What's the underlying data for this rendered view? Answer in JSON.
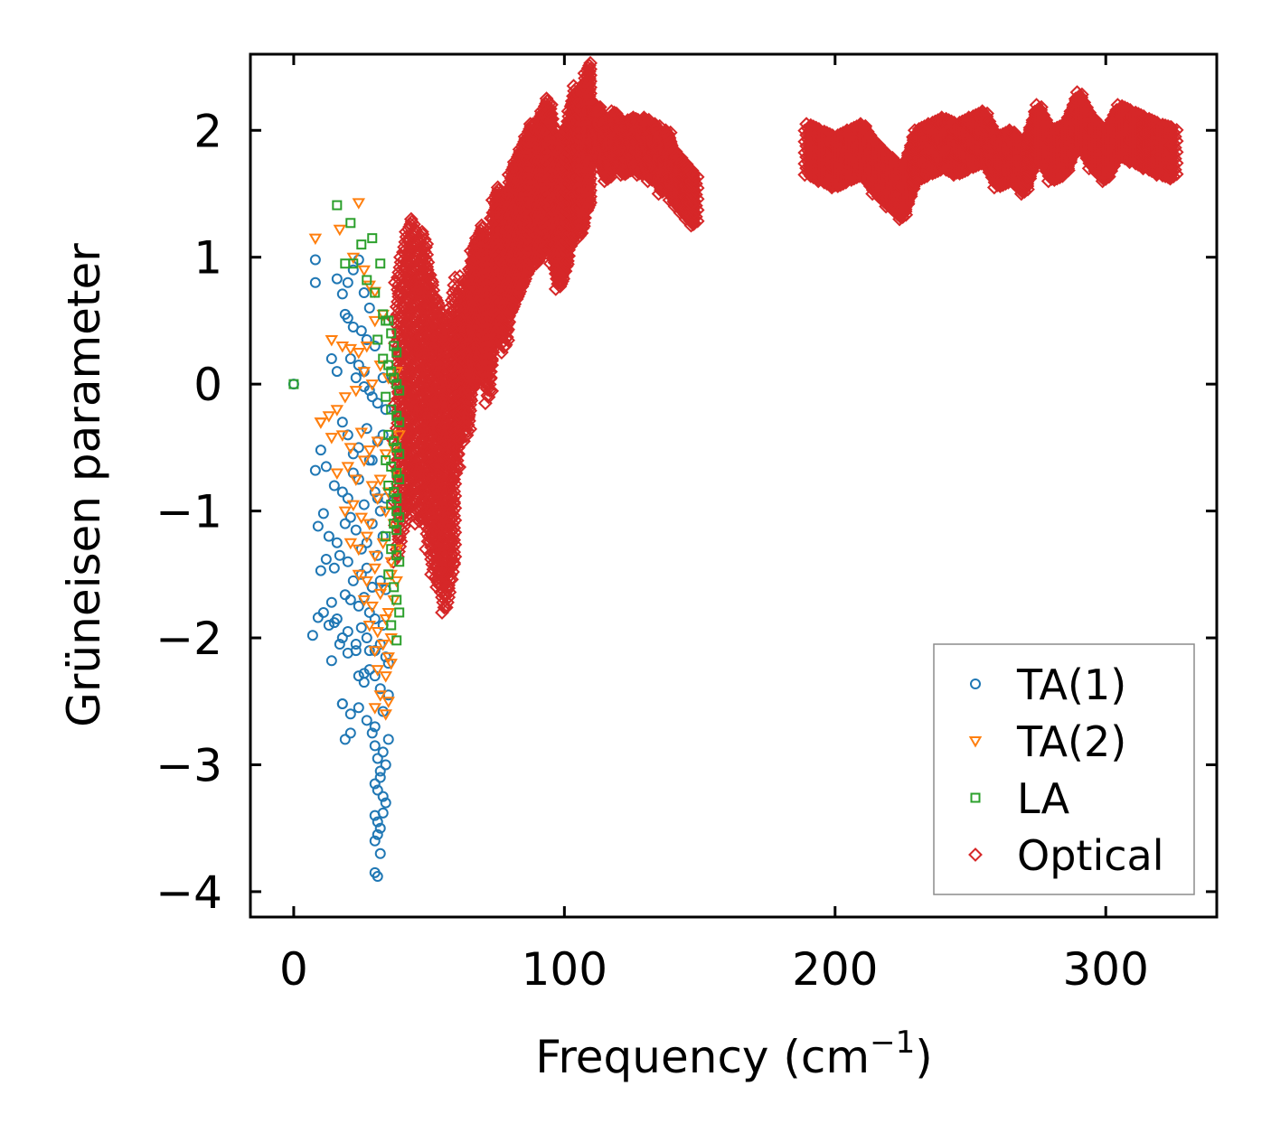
{
  "chart_data": {
    "type": "scatter",
    "title": "",
    "xlabel": "Frequency (cm",
    "xlabel_sup": "−1",
    "xlabel_end": ")",
    "ylabel": "Grüneisen parameter",
    "xlim": [
      -16,
      341
    ],
    "ylim": [
      -4.2,
      2.6
    ],
    "xticks": [
      0,
      100,
      200,
      300
    ],
    "xtick_labels": [
      "0",
      "100",
      "200",
      "300"
    ],
    "yticks": [
      -4,
      -3,
      -2,
      -1,
      0,
      1,
      2
    ],
    "ytick_labels": [
      "−4",
      "−3",
      "−2",
      "−1",
      "0",
      "1",
      "2"
    ],
    "grid": false,
    "legend_position": "bottom-right",
    "series": [
      {
        "name": "TA(1)",
        "marker": "circle",
        "color": "#1f77b4",
        "x": [
          0,
          8,
          8,
          16,
          18,
          19,
          20,
          22,
          24,
          26,
          28,
          20,
          22,
          25,
          27,
          30,
          21,
          24,
          26,
          23,
          26,
          28,
          29,
          31,
          33,
          34,
          14,
          16,
          18,
          20,
          22,
          24,
          27,
          29,
          31,
          10,
          12,
          15,
          18,
          20,
          22,
          24,
          26,
          28,
          30,
          32,
          34,
          8,
          9,
          11,
          13,
          16,
          19,
          21,
          23,
          25,
          27,
          29,
          31,
          33,
          10,
          12,
          15,
          17,
          20,
          22,
          25,
          27,
          29,
          32,
          34,
          11,
          14,
          16,
          19,
          21,
          24,
          26,
          28,
          30,
          33,
          7,
          9,
          13,
          15,
          18,
          20,
          23,
          25,
          27,
          30,
          32,
          34,
          14,
          17,
          20,
          23,
          26,
          28,
          30,
          32,
          35,
          18,
          21,
          24,
          27,
          30,
          33,
          35,
          29,
          30,
          31,
          32,
          33,
          34,
          35,
          30,
          31,
          32,
          33,
          34,
          30,
          31,
          32,
          33,
          30,
          31,
          32,
          30,
          31,
          19,
          21,
          18,
          24,
          26,
          28,
          29,
          31,
          33
        ],
        "y": [
          0,
          0.98,
          0.8,
          0.83,
          0.71,
          0.55,
          0.8,
          0.9,
          0.98,
          0.72,
          0.6,
          0.52,
          0.45,
          0.42,
          0.35,
          0.3,
          0.2,
          0.15,
          0.1,
          0.05,
          -0.02,
          -0.05,
          -0.1,
          -0.15,
          0.05,
          -0.2,
          0.2,
          0.1,
          -0.3,
          -0.4,
          -0.55,
          -0.5,
          -0.35,
          -0.6,
          -0.45,
          -0.52,
          -0.65,
          -0.8,
          -0.85,
          -0.9,
          -0.7,
          -0.75,
          -0.95,
          -0.6,
          -0.85,
          -1.0,
          -0.9,
          -0.68,
          -1.12,
          -1.02,
          -1.2,
          -1.25,
          -1.1,
          -1.05,
          -1.15,
          -1.3,
          -1.25,
          -1.1,
          -1.35,
          -1.2,
          -1.47,
          -1.38,
          -1.45,
          -1.35,
          -1.4,
          -1.55,
          -1.5,
          -1.45,
          -1.6,
          -1.55,
          -1.62,
          -1.8,
          -1.72,
          -1.85,
          -1.66,
          -1.7,
          -1.75,
          -1.68,
          -1.8,
          -1.85,
          -1.9,
          -1.98,
          -1.84,
          -1.9,
          -1.88,
          -2.0,
          -1.95,
          -2.05,
          -1.92,
          -2.0,
          -2.1,
          -2.05,
          -2.15,
          -2.18,
          -2.05,
          -2.12,
          -2.1,
          -2.35,
          -2.25,
          -2.3,
          -2.4,
          -2.2,
          -2.52,
          -2.6,
          -2.55,
          -2.65,
          -2.7,
          -2.58,
          -2.45,
          -2.75,
          -2.85,
          -2.95,
          -3.05,
          -2.9,
          -3.0,
          -2.8,
          -3.15,
          -3.2,
          -3.1,
          -3.25,
          -3.3,
          -3.4,
          -3.45,
          -3.5,
          -3.38,
          -3.6,
          -3.55,
          -3.7,
          -3.85,
          -3.88,
          -2.8,
          -2.75,
          -2.52,
          -2.3,
          -2.28,
          -2.1,
          -1.6,
          -0.9,
          -0.4
        ]
      },
      {
        "name": "TA(2)",
        "marker": "triangle-down",
        "color": "#ff7f0e",
        "x": [
          24,
          8,
          17,
          22,
          26,
          28,
          30,
          14,
          18,
          21,
          24,
          27,
          30,
          33,
          10,
          13,
          16,
          19,
          23,
          26,
          29,
          32,
          35,
          38,
          10,
          14,
          18,
          21,
          25,
          28,
          31,
          34,
          37,
          39,
          16,
          20,
          23,
          26,
          29,
          32,
          35,
          38,
          19,
          22,
          25,
          28,
          31,
          34,
          37,
          21,
          24,
          27,
          30,
          33,
          36,
          38,
          24,
          27,
          30,
          33,
          36,
          38,
          26,
          29,
          32,
          35,
          37,
          28,
          31,
          34,
          36,
          30,
          33,
          35,
          31,
          34,
          36,
          32,
          35,
          30,
          34
        ],
        "y": [
          1.43,
          1.15,
          1.22,
          1.0,
          0.9,
          0.78,
          0.73,
          0.35,
          0.3,
          0.28,
          0.25,
          0.3,
          0.5,
          0.55,
          -0.3,
          -0.25,
          -0.2,
          -0.1,
          -0.05,
          0.1,
          0.0,
          0.15,
          0.05,
          0.1,
          -0.3,
          -0.42,
          -0.4,
          -0.5,
          -0.38,
          -0.52,
          -0.45,
          -0.55,
          -0.5,
          -0.4,
          -0.7,
          -0.65,
          -0.75,
          -0.6,
          -0.8,
          -0.75,
          -0.85,
          -0.7,
          -1.0,
          -0.95,
          -1.05,
          -1.1,
          -0.9,
          -1.0,
          -1.1,
          -1.25,
          -1.3,
          -1.2,
          -1.35,
          -1.25,
          -1.4,
          -1.3,
          -1.5,
          -1.55,
          -1.45,
          -1.6,
          -1.5,
          -1.55,
          -1.7,
          -1.75,
          -1.65,
          -1.8,
          -1.7,
          -1.9,
          -1.95,
          -1.85,
          -2.0,
          -2.1,
          -2.05,
          -2.15,
          -2.25,
          -2.3,
          -2.2,
          -2.45,
          -2.5,
          -2.55,
          -2.6
        ]
      },
      {
        "name": "LA",
        "marker": "square",
        "color": "#2ca02c",
        "x": [
          0,
          16,
          21,
          29,
          25,
          32,
          19,
          22,
          27,
          30,
          33,
          34,
          35,
          36,
          37,
          38,
          31,
          33,
          35,
          36,
          37,
          38,
          39,
          34,
          36,
          38,
          39,
          35,
          37,
          38,
          39,
          34,
          36,
          38,
          39,
          35,
          37,
          38,
          36,
          38,
          39,
          37,
          38,
          34,
          36,
          38,
          39,
          35,
          37,
          38,
          39,
          36,
          38
        ],
        "y": [
          0,
          1.41,
          1.27,
          1.15,
          1.1,
          0.95,
          0.95,
          0.95,
          0.82,
          0.72,
          0.55,
          0.5,
          0.5,
          0.4,
          0.3,
          0.25,
          0.35,
          0.2,
          0.15,
          0.1,
          0.05,
          0.0,
          -0.05,
          -0.1,
          -0.2,
          -0.25,
          -0.3,
          -0.4,
          -0.45,
          -0.5,
          -0.55,
          -0.6,
          -0.65,
          -0.7,
          -0.75,
          -0.8,
          -0.85,
          -0.9,
          -0.95,
          -1.0,
          -1.05,
          -1.1,
          -1.15,
          -1.2,
          -1.3,
          -1.35,
          -1.4,
          -1.5,
          -1.6,
          -1.7,
          -1.8,
          -1.9,
          -2.02
        ]
      },
      {
        "name": "Optical",
        "marker": "diamond",
        "color": "#d62728",
        "x": [
          38,
          40,
          42,
          44,
          46,
          48,
          50,
          52,
          54,
          56,
          58,
          60,
          62,
          64,
          66,
          68,
          70,
          72,
          74,
          76,
          78,
          80,
          82,
          84,
          86,
          88,
          90,
          92,
          94,
          96,
          98,
          100,
          102,
          104,
          106,
          108,
          110,
          112,
          114,
          116,
          118,
          120,
          122,
          124,
          126,
          128,
          130,
          132,
          134,
          136,
          138,
          140,
          142,
          144,
          146,
          148,
          190,
          195,
          200,
          205,
          210,
          215,
          220,
          225,
          230,
          235,
          240,
          245,
          250,
          255,
          260,
          265,
          270,
          275,
          280,
          285,
          290,
          295,
          300,
          305,
          310,
          315,
          320,
          325
        ],
        "y": [
          -0.3,
          -0.1,
          0.1,
          0.2,
          0.0,
          0.1,
          -0.2,
          -0.4,
          -0.5,
          -0.7,
          -0.5,
          -0.2,
          0.3,
          0.1,
          0.5,
          0.6,
          0.7,
          0.4,
          0.9,
          1.0,
          0.8,
          1.1,
          1.2,
          1.3,
          1.4,
          1.5,
          1.5,
          1.6,
          1.7,
          1.5,
          1.3,
          1.4,
          1.6,
          1.8,
          1.7,
          1.9,
          2.0,
          2.0,
          1.9,
          1.8,
          1.95,
          1.9,
          1.85,
          1.88,
          1.9,
          1.85,
          1.9,
          1.8,
          1.85,
          1.7,
          1.8,
          1.65,
          1.6,
          1.55,
          1.5,
          1.45,
          1.85,
          1.8,
          1.75,
          1.8,
          1.85,
          1.7,
          1.6,
          1.5,
          1.8,
          1.85,
          1.9,
          1.85,
          1.9,
          1.95,
          1.75,
          1.8,
          1.7,
          2.0,
          1.8,
          1.85,
          2.1,
          1.9,
          1.8,
          2.0,
          1.95,
          1.9,
          1.85,
          1.82
        ]
      }
    ]
  }
}
